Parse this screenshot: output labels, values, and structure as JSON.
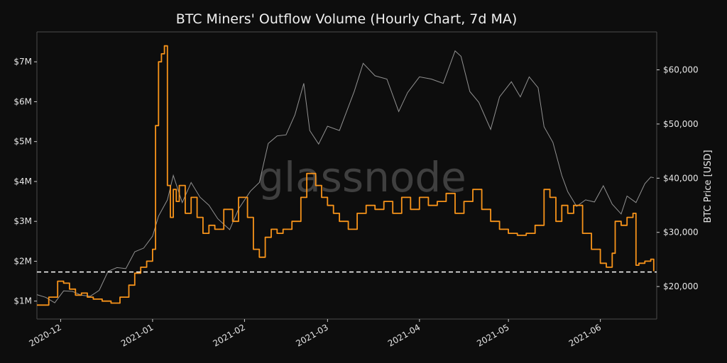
{
  "chart_data": {
    "type": "line",
    "title": "BTC Miners' Outflow Volume (Hourly Chart, 7d MA)",
    "xlabel": "",
    "ylabel_left": "",
    "ylabel_right": "BTC Price [USD]",
    "watermark": "glassnode",
    "x_range": [
      "2020-11-23",
      "2021-06-20"
    ],
    "x_ticks": [
      {
        "date": "2020-12-01",
        "label": "2020-12"
      },
      {
        "date": "2021-01-01",
        "label": "2021-01"
      },
      {
        "date": "2021-02-01",
        "label": "2021-02"
      },
      {
        "date": "2021-03-01",
        "label": "2021-03"
      },
      {
        "date": "2021-04-01",
        "label": "2021-04"
      },
      {
        "date": "2021-05-01",
        "label": "2021-05"
      },
      {
        "date": "2021-06-01",
        "label": "2021-06"
      }
    ],
    "y_left_range": [
      0.55,
      7.75
    ],
    "y_left_ticks": [
      {
        "value": 1,
        "label": "$1M"
      },
      {
        "value": 2,
        "label": "$2M"
      },
      {
        "value": 3,
        "label": "$3M"
      },
      {
        "value": 4,
        "label": "$4M"
      },
      {
        "value": 5,
        "label": "$5M"
      },
      {
        "value": 6,
        "label": "$6M"
      },
      {
        "value": 7,
        "label": "$7M"
      }
    ],
    "y_right_range": [
      14000,
      67000
    ],
    "y_right_ticks": [
      {
        "value": 20000,
        "label": "$20,000"
      },
      {
        "value": 30000,
        "label": "$30,000"
      },
      {
        "value": 40000,
        "label": "$40,000"
      },
      {
        "value": 50000,
        "label": "$50,000"
      },
      {
        "value": 60000,
        "label": "$60,000"
      }
    ],
    "reference_line": {
      "axis": "left",
      "value": 1.73,
      "style": "dashed",
      "color": "#ffffff"
    },
    "grid": false,
    "legend": "none",
    "series": [
      {
        "axis": "left",
        "color": "#f7931a",
        "x": [
          "2020-11-23",
          "2020-11-27",
          "2020-11-30",
          "2020-12-02",
          "2020-12-04",
          "2020-12-06",
          "2020-12-08",
          "2020-12-10",
          "2020-12-12",
          "2020-12-15",
          "2020-12-18",
          "2020-12-21",
          "2020-12-24",
          "2020-12-26",
          "2020-12-28",
          "2020-12-30",
          "2021-01-01",
          "2021-01-02",
          "2021-01-03",
          "2021-01-04",
          "2021-01-05",
          "2021-01-06",
          "2021-01-07",
          "2021-01-08",
          "2021-01-09",
          "2021-01-10",
          "2021-01-12",
          "2021-01-14",
          "2021-01-16",
          "2021-01-18",
          "2021-01-20",
          "2021-01-22",
          "2021-01-25",
          "2021-01-28",
          "2021-01-30",
          "2021-02-02",
          "2021-02-04",
          "2021-02-06",
          "2021-02-08",
          "2021-02-10",
          "2021-02-12",
          "2021-02-14",
          "2021-02-17",
          "2021-02-20",
          "2021-02-22",
          "2021-02-25",
          "2021-02-27",
          "2021-03-01",
          "2021-03-03",
          "2021-03-05",
          "2021-03-08",
          "2021-03-11",
          "2021-03-14",
          "2021-03-17",
          "2021-03-20",
          "2021-03-23",
          "2021-03-26",
          "2021-03-29",
          "2021-04-01",
          "2021-04-04",
          "2021-04-07",
          "2021-04-10",
          "2021-04-13",
          "2021-04-16",
          "2021-04-19",
          "2021-04-22",
          "2021-04-25",
          "2021-04-28",
          "2021-05-01",
          "2021-05-04",
          "2021-05-07",
          "2021-05-10",
          "2021-05-13",
          "2021-05-15",
          "2021-05-17",
          "2021-05-19",
          "2021-05-21",
          "2021-05-23",
          "2021-05-26",
          "2021-05-29",
          "2021-06-01",
          "2021-06-03",
          "2021-06-05",
          "2021-06-06",
          "2021-06-08",
          "2021-06-10",
          "2021-06-12",
          "2021-06-13",
          "2021-06-14",
          "2021-06-16",
          "2021-06-18",
          "2021-06-19"
        ],
        "values": [
          0.9,
          1.1,
          1.5,
          1.45,
          1.3,
          1.15,
          1.2,
          1.1,
          1.05,
          1.0,
          0.95,
          1.1,
          1.4,
          1.7,
          1.85,
          2.0,
          2.3,
          5.4,
          7.0,
          7.2,
          7.4,
          3.9,
          3.1,
          3.8,
          3.5,
          3.9,
          3.2,
          3.6,
          3.1,
          2.7,
          2.9,
          2.8,
          3.3,
          3.0,
          3.6,
          3.1,
          2.3,
          2.1,
          2.6,
          2.8,
          2.7,
          2.8,
          3.0,
          3.6,
          4.2,
          3.9,
          3.6,
          3.4,
          3.2,
          3.0,
          2.8,
          3.2,
          3.4,
          3.3,
          3.5,
          3.2,
          3.6,
          3.3,
          3.6,
          3.4,
          3.5,
          3.7,
          3.2,
          3.5,
          3.8,
          3.3,
          3.0,
          2.8,
          2.7,
          2.65,
          2.7,
          2.9,
          3.8,
          3.6,
          3.0,
          3.4,
          3.2,
          3.4,
          2.7,
          2.3,
          1.95,
          1.85,
          2.2,
          3.0,
          2.9,
          3.1,
          3.2,
          1.9,
          1.95,
          2.0,
          2.05,
          1.75
        ]
      },
      {
        "axis": "right",
        "color": "#a0a0a0",
        "x": [
          "2020-11-23",
          "2020-11-26",
          "2020-11-29",
          "2020-12-02",
          "2020-12-05",
          "2020-12-08",
          "2020-12-11",
          "2020-12-14",
          "2020-12-17",
          "2020-12-20",
          "2020-12-23",
          "2020-12-26",
          "2020-12-29",
          "2021-01-01",
          "2021-01-03",
          "2021-01-06",
          "2021-01-08",
          "2021-01-11",
          "2021-01-14",
          "2021-01-17",
          "2021-01-20",
          "2021-01-23",
          "2021-01-27",
          "2021-01-30",
          "2021-02-03",
          "2021-02-06",
          "2021-02-09",
          "2021-02-12",
          "2021-02-15",
          "2021-02-18",
          "2021-02-21",
          "2021-02-23",
          "2021-02-26",
          "2021-03-01",
          "2021-03-05",
          "2021-03-10",
          "2021-03-13",
          "2021-03-17",
          "2021-03-21",
          "2021-03-25",
          "2021-03-28",
          "2021-04-01",
          "2021-04-05",
          "2021-04-09",
          "2021-04-13",
          "2021-04-15",
          "2021-04-18",
          "2021-04-21",
          "2021-04-25",
          "2021-04-28",
          "2021-05-02",
          "2021-05-05",
          "2021-05-08",
          "2021-05-11",
          "2021-05-13",
          "2021-05-16",
          "2021-05-19",
          "2021-05-21",
          "2021-05-24",
          "2021-05-27",
          "2021-05-30",
          "2021-06-02",
          "2021-06-05",
          "2021-06-08",
          "2021-06-10",
          "2021-06-13",
          "2021-06-16",
          "2021-06-18",
          "2021-06-19"
        ],
        "values": [
          18500,
          18000,
          17000,
          19200,
          19100,
          18400,
          18200,
          19300,
          22800,
          23500,
          23300,
          26400,
          27100,
          29300,
          33000,
          36000,
          40500,
          35500,
          39200,
          36500,
          35000,
          32500,
          30500,
          34300,
          37600,
          39200,
          46400,
          47800,
          48000,
          51700,
          57500,
          48800,
          46300,
          49600,
          48800,
          56000,
          61200,
          58900,
          58300,
          52300,
          55800,
          58700,
          58300,
          57500,
          63500,
          62500,
          56000,
          54000,
          49000,
          55000,
          57800,
          55000,
          58700,
          56700,
          49500,
          46600,
          40500,
          37500,
          34800,
          36000,
          35600,
          38600,
          35200,
          33400,
          36700,
          35500,
          39000,
          40200,
          40100
        ]
      }
    ]
  }
}
